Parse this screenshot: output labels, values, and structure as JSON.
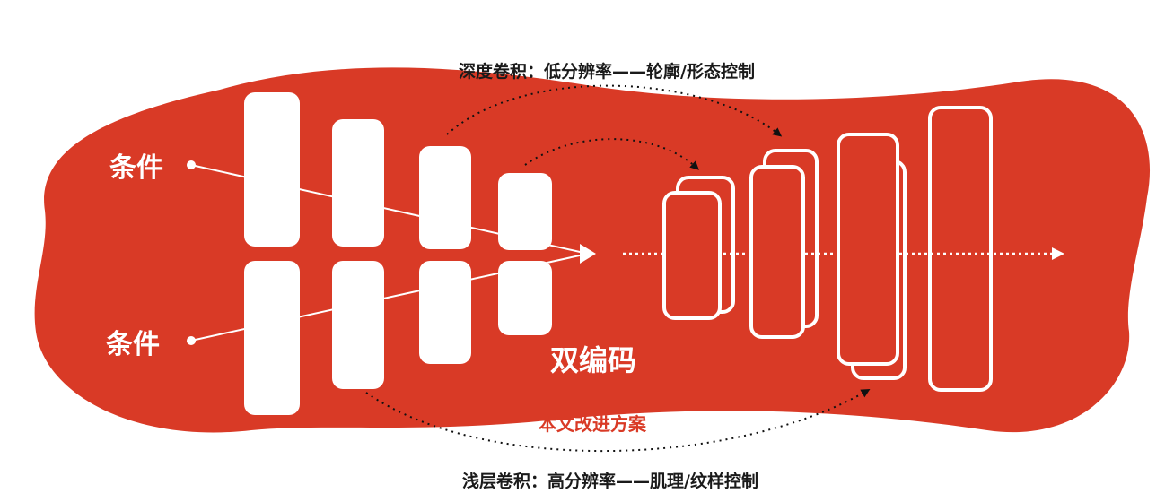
{
  "labels": {
    "top_caption": "深度卷积：低分辨率——轮廓/形态控制",
    "bottom_caption": "浅层卷积：高分辨率——肌理/纹样控制",
    "condition_top": "条件",
    "condition_bottom": "条件",
    "encoder_label": "双编码",
    "scheme_label": "本文改进方案"
  },
  "colors": {
    "blob": "#d93a26",
    "block": "#ffffff",
    "caption": "#1a1a1a",
    "scheme": "#d93a26"
  }
}
